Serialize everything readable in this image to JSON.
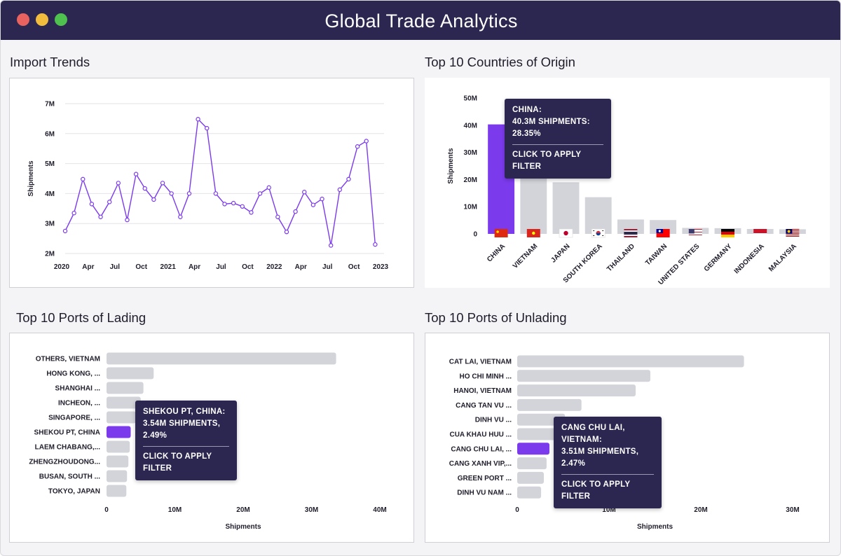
{
  "app": {
    "title": "Global Trade Analytics"
  },
  "colors": {
    "accent": "#7c3aed",
    "bar": "#d2d4da",
    "titlebar": "#2c2750",
    "line": "#7c3aed"
  },
  "panels": {
    "import_trends": {
      "title": "Import Trends"
    },
    "origin": {
      "title": "Top 10 Countries of Origin"
    },
    "lading": {
      "title": "Top 10 Ports of Lading"
    },
    "unlading": {
      "title": "Top 10 Ports of Unlading"
    }
  },
  "chart_data": [
    {
      "id": "import_trends",
      "type": "line",
      "ylabel": "Shipments",
      "ylim": [
        2,
        7
      ],
      "y_ticks": [
        "2M",
        "3M",
        "4M",
        "5M",
        "6M",
        "7M"
      ],
      "x_tick_labels": [
        "2020",
        "Apr",
        "Jul",
        "Oct",
        "2021",
        "Apr",
        "Jul",
        "Oct",
        "2022",
        "Apr",
        "Jul",
        "Oct",
        "2023"
      ],
      "x": [
        "2020-01",
        "2020-02",
        "2020-03",
        "2020-04",
        "2020-05",
        "2020-06",
        "2020-07",
        "2020-08",
        "2020-09",
        "2020-10",
        "2020-11",
        "2020-12",
        "2021-01",
        "2021-02",
        "2021-03",
        "2021-04",
        "2021-05",
        "2021-06",
        "2021-07",
        "2021-08",
        "2021-09",
        "2021-10",
        "2021-11",
        "2021-12",
        "2022-01",
        "2022-02",
        "2022-03",
        "2022-04",
        "2022-05",
        "2022-06",
        "2022-07",
        "2022-08",
        "2022-09",
        "2022-10",
        "2022-11",
        "2022-12"
      ],
      "values": [
        2.75,
        3.35,
        4.48,
        3.65,
        3.22,
        3.72,
        4.35,
        3.12,
        4.65,
        4.17,
        3.8,
        4.35,
        4.0,
        3.22,
        4.0,
        6.48,
        6.18,
        4.0,
        3.65,
        3.68,
        3.57,
        3.37,
        4.0,
        4.2,
        3.22,
        2.72,
        3.4,
        4.05,
        3.62,
        3.82,
        2.27,
        4.13,
        4.48,
        5.57,
        5.75,
        2.3
      ]
    },
    {
      "id": "origin",
      "type": "bar",
      "ylabel": "Shipments",
      "ylim": [
        0,
        50
      ],
      "y_ticks": [
        "0",
        "10M",
        "20M",
        "30M",
        "40M",
        "50M"
      ],
      "categories": [
        "CHINA",
        "VIETNAM",
        "JAPAN",
        "SOUTH KOREA",
        "THAILAND",
        "TAIWAN",
        "UNITED STATES",
        "GERMANY",
        "INDONESIA",
        "MALAYSIA"
      ],
      "flags": [
        "china-flag",
        "vietnam-flag",
        "japan-flag",
        "south-korea-flag",
        "thailand-flag",
        "taiwan-flag",
        "united-states-flag",
        "germany-flag",
        "indonesia-flag",
        "malaysia-flag"
      ],
      "values": [
        40.3,
        28.0,
        19.0,
        13.5,
        5.3,
        5.1,
        2.2,
        2.1,
        1.8,
        1.7
      ],
      "highlight": 0
    },
    {
      "id": "lading",
      "type": "bar",
      "orientation": "horizontal",
      "xlabel": "Shipments",
      "xlim": [
        0,
        40
      ],
      "x_ticks": [
        "0",
        "10M",
        "20M",
        "30M",
        "40M"
      ],
      "categories": [
        "OTHERS, VIETNAM",
        "HONG KONG, ...",
        "SHANGHAI ...",
        "INCHEON, ...",
        "SINGAPORE, ...",
        "SHEKOU PT, CHINA",
        "LAEM CHABANG,...",
        "ZHENGZHOUDONG...",
        "BUSAN, SOUTH ...",
        "TOKYO, JAPAN"
      ],
      "values": [
        33.6,
        6.9,
        5.4,
        5.0,
        4.3,
        3.54,
        3.4,
        3.2,
        3.0,
        2.9
      ],
      "highlight": 5
    },
    {
      "id": "unlading",
      "type": "bar",
      "orientation": "horizontal",
      "xlabel": "Shipments",
      "xlim": [
        0,
        30
      ],
      "x_ticks": [
        "0",
        "10M",
        "20M",
        "30M"
      ],
      "categories": [
        "CAT LAI, VIETNAM",
        "HO CHI MINH ...",
        "HANOI, VIETNAM",
        "CANG TAN VU ...",
        "DINH VU ...",
        "CUA KHAU HUU ...",
        "CANG CHU LAI, ...",
        "CANG XANH VIP,...",
        "GREEN PORT ...",
        "DINH VU NAM ..."
      ],
      "values": [
        24.7,
        14.5,
        12.9,
        7.0,
        5.2,
        4.5,
        3.51,
        3.2,
        2.9,
        2.6
      ],
      "highlight": 6
    }
  ],
  "tooltips": {
    "origin": {
      "line1": "CHINA:",
      "line2": "40.3M SHIPMENTS:",
      "line3": "28.35%",
      "action": "CLICK TO APPLY FILTER"
    },
    "lading": {
      "line1": "SHEKOU PT, CHINA:",
      "line2": "3.54M SHIPMENTS,",
      "line3": "2.49%",
      "action": "CLICK TO APPLY FILTER"
    },
    "unlading": {
      "line1": "CANG CHU LAI, VIETNAM:",
      "line2": "3.51M SHIPMENTS,",
      "line3": "2.47%",
      "action": "CLICK TO APPLY FILTER"
    }
  }
}
